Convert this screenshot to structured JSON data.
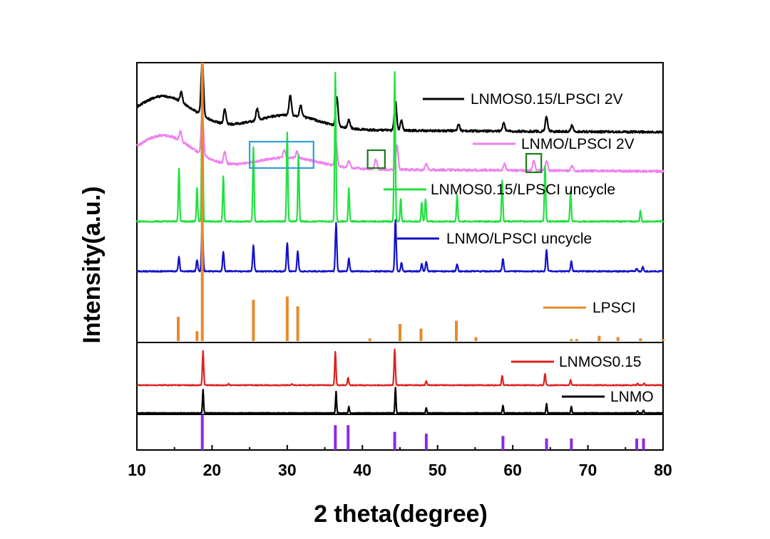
{
  "chart_data": {
    "type": "line",
    "xlabel": "2 theta(degree)",
    "ylabel": "Intensity(a.u.)",
    "xlim": [
      10,
      80
    ],
    "x_ticks": [
      10,
      20,
      30,
      40,
      50,
      60,
      70,
      80
    ],
    "y_ticks": [],
    "grid": false,
    "legend_placement": "right, beside each pattern",
    "series": [
      {
        "name": "LNMOS0.15/LPSCI 2V",
        "color": "#000000",
        "type": "pattern",
        "peaks": [
          [
            15.9,
            0.3
          ],
          [
            18.7,
            1.8
          ],
          [
            21.7,
            0.45
          ],
          [
            26.0,
            0.35
          ],
          [
            30.4,
            0.6
          ],
          [
            31.8,
            0.35
          ],
          [
            36.6,
            0.9
          ],
          [
            38.2,
            0.25
          ],
          [
            44.4,
            0.9
          ],
          [
            45.2,
            0.3
          ],
          [
            52.8,
            0.2
          ],
          [
            58.8,
            0.25
          ],
          [
            64.5,
            0.45
          ],
          [
            67.9,
            0.2
          ]
        ],
        "hump": [
          [
            13.5,
            1.0
          ],
          [
            30.0,
            0.45
          ]
        ]
      },
      {
        "name": "LNMO/LPSCI 2V",
        "color": "#ee82ee",
        "type": "pattern",
        "peaks": [
          [
            15.8,
            0.3
          ],
          [
            18.7,
            1.3
          ],
          [
            21.7,
            0.35
          ],
          [
            29.6,
            0.25
          ],
          [
            31.3,
            0.2
          ],
          [
            36.5,
            0.7
          ],
          [
            38.2,
            0.2
          ],
          [
            41.8,
            0.3
          ],
          [
            44.6,
            0.75
          ],
          [
            48.5,
            0.2
          ],
          [
            58.9,
            0.2
          ],
          [
            62.8,
            0.3
          ],
          [
            64.5,
            0.3
          ],
          [
            67.9,
            0.15
          ]
        ],
        "hump": [
          [
            13.5,
            1.0
          ],
          [
            30.0,
            0.35
          ]
        ]
      },
      {
        "name": "LNMOS0.15/LPSCI uncycle",
        "color": "#22e040",
        "type": "pattern",
        "peaks": [
          [
            15.6,
            0.7
          ],
          [
            18.0,
            0.45
          ],
          [
            18.7,
            2.1
          ],
          [
            21.5,
            0.6
          ],
          [
            25.5,
            1.0
          ],
          [
            30.0,
            1.2
          ],
          [
            31.5,
            0.9
          ],
          [
            36.4,
            2.0
          ],
          [
            38.2,
            0.45
          ],
          [
            44.3,
            2.0
          ],
          [
            45.1,
            0.3
          ],
          [
            47.9,
            0.25
          ],
          [
            48.4,
            0.3
          ],
          [
            52.6,
            0.35
          ],
          [
            58.6,
            0.55
          ],
          [
            64.3,
            0.75
          ],
          [
            67.7,
            0.4
          ],
          [
            77.0,
            0.15
          ]
        ]
      },
      {
        "name": "LNMO/LPSCI uncycle",
        "color": "#1010cc",
        "type": "pattern",
        "peaks": [
          [
            15.6,
            0.5
          ],
          [
            18.0,
            0.4
          ],
          [
            18.7,
            1.75
          ],
          [
            21.5,
            0.7
          ],
          [
            25.5,
            0.9
          ],
          [
            30.0,
            1.0
          ],
          [
            31.4,
            0.7
          ],
          [
            36.5,
            1.7
          ],
          [
            38.2,
            0.45
          ],
          [
            44.4,
            1.8
          ],
          [
            45.2,
            0.3
          ],
          [
            47.9,
            0.25
          ],
          [
            48.5,
            0.35
          ],
          [
            52.6,
            0.25
          ],
          [
            58.7,
            0.45
          ],
          [
            64.5,
            0.75
          ],
          [
            67.8,
            0.35
          ],
          [
            76.5,
            0.1
          ],
          [
            77.3,
            0.15
          ]
        ]
      },
      {
        "name": "LPSCI",
        "color": "#e8892a",
        "type": "stick",
        "sticks": [
          [
            15.5,
            0.37
          ],
          [
            18.0,
            0.15
          ],
          [
            18.7,
            1.0
          ],
          [
            25.5,
            0.63
          ],
          [
            30.0,
            0.68
          ],
          [
            31.4,
            0.53
          ],
          [
            41.0,
            0.04
          ],
          [
            45.0,
            0.26
          ],
          [
            47.8,
            0.19
          ],
          [
            52.5,
            0.31
          ],
          [
            55.1,
            0.06
          ],
          [
            67.8,
            0.03
          ],
          [
            68.5,
            0.03
          ],
          [
            71.5,
            0.08
          ],
          [
            74.0,
            0.06
          ],
          [
            77.0,
            0.04
          ],
          [
            80.0,
            0.03
          ]
        ]
      },
      {
        "name": "LNMOS0.15",
        "color": "#dd2222",
        "type": "pattern",
        "peaks": [
          [
            18.8,
            1.6
          ],
          [
            22.2,
            0.06
          ],
          [
            30.6,
            0.05
          ],
          [
            36.4,
            1.55
          ],
          [
            38.1,
            0.35
          ],
          [
            44.3,
            1.7
          ],
          [
            48.5,
            0.2
          ],
          [
            58.6,
            0.45
          ],
          [
            64.3,
            0.55
          ],
          [
            67.7,
            0.25
          ],
          [
            76.6,
            0.08
          ],
          [
            77.5,
            0.08
          ]
        ]
      },
      {
        "name": "LNMO",
        "color": "#000000",
        "type": "pattern",
        "peaks": [
          [
            18.8,
            1.1
          ],
          [
            36.5,
            1.0
          ],
          [
            38.2,
            0.3
          ],
          [
            44.4,
            1.2
          ],
          [
            48.5,
            0.25
          ],
          [
            58.7,
            0.35
          ],
          [
            64.5,
            0.45
          ],
          [
            67.8,
            0.3
          ],
          [
            76.6,
            0.1
          ],
          [
            77.4,
            0.12
          ]
        ]
      },
      {
        "name": "",
        "color": "#8a2be2",
        "type": "stick",
        "sticks": [
          [
            18.7,
            1.0
          ],
          [
            36.4,
            0.67
          ],
          [
            38.1,
            0.67
          ],
          [
            44.3,
            0.49
          ],
          [
            48.5,
            0.44
          ],
          [
            58.7,
            0.38
          ],
          [
            64.5,
            0.31
          ],
          [
            67.8,
            0.31
          ],
          [
            76.5,
            0.31
          ],
          [
            77.4,
            0.31
          ]
        ]
      }
    ],
    "annotations": [
      {
        "shape": "rect",
        "color": "#2f9fd8",
        "x_range": [
          25.0,
          33.5
        ],
        "on_series": "LNMO/LPSCI 2V"
      },
      {
        "shape": "rect",
        "color": "#1e7a1e",
        "x_range": [
          40.7,
          43.0
        ],
        "on_series": "LNMO/LPSCI 2V"
      },
      {
        "shape": "rect",
        "color": "#1e7a1e",
        "x_range": [
          61.8,
          63.8
        ],
        "on_series": "LNMO/LPSCI 2V"
      }
    ]
  }
}
